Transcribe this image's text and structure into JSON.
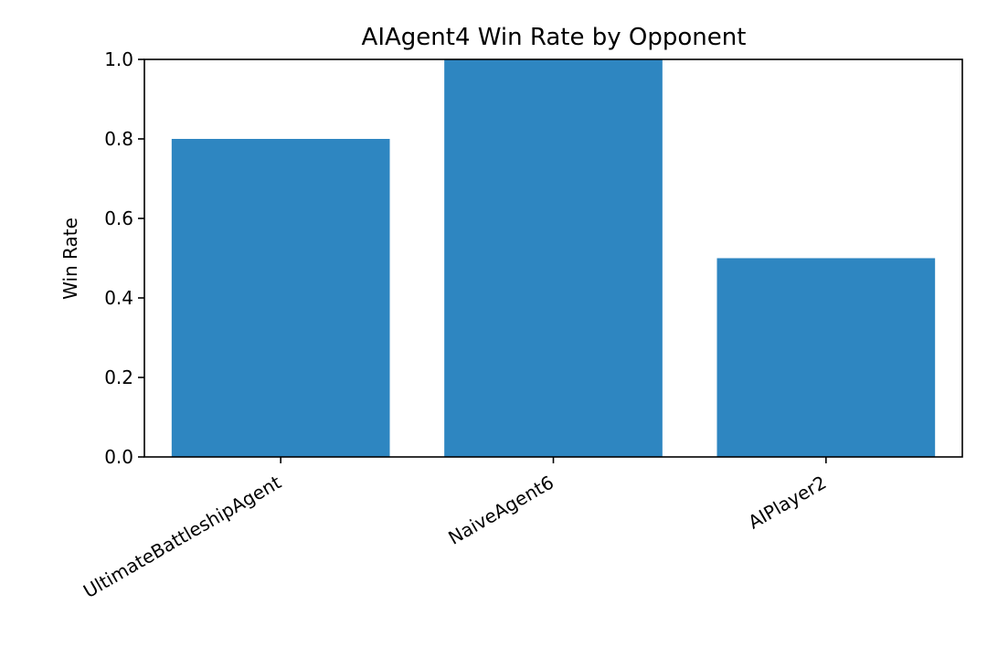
{
  "chart_data": {
    "type": "bar",
    "title": "AIAgent4 Win Rate by Opponent",
    "xlabel": "",
    "ylabel": "Win Rate",
    "categories": [
      "UltimateBattleshipAgent",
      "NaiveAgent6",
      "AIPlayer2"
    ],
    "values": [
      0.8,
      1.0,
      0.5
    ],
    "ylim": [
      0,
      1.0
    ],
    "yticks": [
      "0.0",
      "0.2",
      "0.4",
      "0.6",
      "0.8",
      "1.0"
    ],
    "grid": false,
    "legend": "none",
    "bar_color": "#2e86c1"
  }
}
